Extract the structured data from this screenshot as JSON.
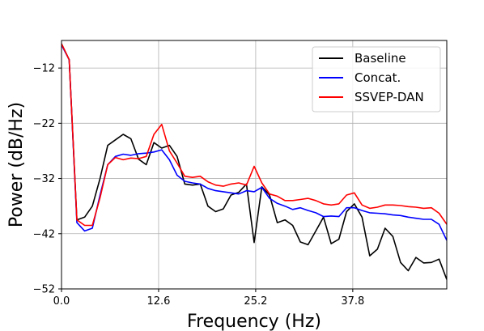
{
  "chart_data": {
    "type": "line",
    "title": "",
    "xlabel": "Frequency (Hz)",
    "ylabel": "Power (dB/Hz)",
    "xlim": [
      0,
      50
    ],
    "ylim": [
      -52,
      -7
    ],
    "xticks": [
      0,
      12.6,
      25.2,
      37.8
    ],
    "xtick_labels": [
      "0.0",
      "12.6",
      "25.2",
      "37.8"
    ],
    "yticks": [
      -52,
      -42,
      -32,
      -22,
      -12
    ],
    "ytick_labels": [
      "−52",
      "−42",
      "−32",
      "−22",
      "−12"
    ],
    "grid": true,
    "legend_position": "top-right",
    "series": [
      {
        "name": "Baseline",
        "color": "#000000",
        "x": [
          0,
          1,
          2,
          3,
          4,
          5,
          6,
          7,
          8,
          9,
          10,
          11,
          12,
          13,
          14,
          15,
          16,
          17,
          18,
          19,
          20,
          21,
          22,
          23,
          24,
          25,
          26,
          27,
          28,
          29,
          30,
          31,
          32,
          33,
          34,
          35,
          36,
          37,
          38,
          39,
          40,
          41,
          42,
          43,
          44,
          45,
          46,
          47,
          48,
          49,
          50
        ],
        "values": [
          -7.6,
          -10.5,
          -39.5,
          -39,
          -37,
          -32,
          -26,
          -25,
          -24,
          -24.8,
          -28.5,
          -29.5,
          -25.5,
          -26.5,
          -26,
          -28,
          -33,
          -33.2,
          -33,
          -37,
          -38,
          -37.5,
          -35,
          -34.5,
          -33,
          -43.6,
          -33.5,
          -35,
          -40,
          -39.5,
          -40.5,
          -43.5,
          -44,
          -41.5,
          -39,
          -43.8,
          -43,
          -38,
          -36.6,
          -39,
          -46,
          -44.8,
          -41,
          -42.5,
          -47.2,
          -48.7,
          -46.3,
          -47.3,
          -47.2,
          -46.6,
          -50.3
        ]
      },
      {
        "name": "Concat.",
        "color": "#0000ff",
        "x": [
          0,
          1,
          2,
          3,
          4,
          5,
          6,
          7,
          8,
          9,
          10,
          11,
          12,
          13,
          14,
          15,
          16,
          17,
          18,
          19,
          20,
          21,
          22,
          23,
          24,
          25,
          26,
          27,
          28,
          29,
          30,
          31,
          32,
          33,
          34,
          35,
          36,
          37,
          38,
          39,
          40,
          41,
          42,
          43,
          44,
          45,
          46,
          47,
          48,
          49,
          50
        ],
        "values": [
          -7.8,
          -10.5,
          -40,
          -41.5,
          -41,
          -35,
          -29.5,
          -28,
          -27.6,
          -27.8,
          -27.5,
          -27.4,
          -27.2,
          -26.8,
          -28.6,
          -31.4,
          -32.5,
          -32.8,
          -33,
          -33.8,
          -34.2,
          -34.4,
          -34.6,
          -34.8,
          -34.2,
          -34.4,
          -33.6,
          -35.6,
          -36.5,
          -37,
          -37.6,
          -37.3,
          -37.8,
          -38.2,
          -38.9,
          -38.8,
          -38.9,
          -37.3,
          -37.3,
          -37.8,
          -38.2,
          -38.3,
          -38.4,
          -38.6,
          -38.7,
          -39,
          -39.2,
          -39.4,
          -39.4,
          -40.3,
          -43.2
        ]
      },
      {
        "name": "SSVEP-DAN",
        "color": "#ff0000",
        "x": [
          0,
          1,
          2,
          3,
          4,
          5,
          6,
          7,
          8,
          9,
          10,
          11,
          12,
          13,
          14,
          15,
          16,
          17,
          18,
          19,
          20,
          21,
          22,
          23,
          24,
          25,
          26,
          27,
          28,
          29,
          30,
          31,
          32,
          33,
          34,
          35,
          36,
          37,
          38,
          39,
          40,
          41,
          42,
          43,
          44,
          45,
          46,
          47,
          48,
          49,
          50
        ],
        "values": [
          -7.6,
          -10.5,
          -39.5,
          -40.5,
          -40.5,
          -35.5,
          -29.5,
          -28.2,
          -28.6,
          -28.3,
          -28.4,
          -28,
          -24,
          -22.2,
          -27,
          -29.2,
          -31.6,
          -31.8,
          -31.6,
          -32.6,
          -33.2,
          -33.4,
          -33,
          -32.8,
          -33.2,
          -29.8,
          -32.8,
          -34.8,
          -35.2,
          -36,
          -36,
          -35.8,
          -35.6,
          -36,
          -36.6,
          -36.8,
          -36.6,
          -35,
          -34.6,
          -36.8,
          -37.4,
          -37.2,
          -36.8,
          -36.8,
          -36.9,
          -37.1,
          -37.2,
          -37.4,
          -37.3,
          -38.3,
          -40.3
        ]
      }
    ]
  }
}
